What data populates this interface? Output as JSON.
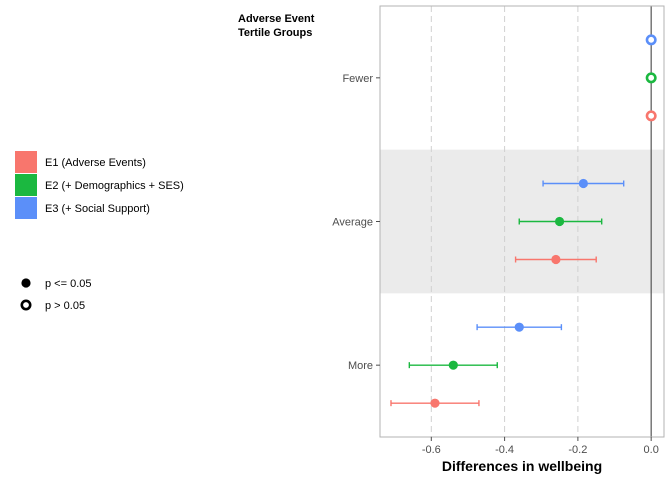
{
  "chart_data": {
    "type": "scatter",
    "subtype": "forest-plot (point estimates with confidence intervals)",
    "title": "",
    "xlabel": "Differences in wellbeing",
    "ylabel": "",
    "xlim": [
      -0.74,
      0.035
    ],
    "xticks": [
      -0.6,
      -0.4,
      -0.2,
      0.0
    ],
    "xtick_labels": [
      "-0.6",
      "-0.4",
      "-0.2",
      "0.0"
    ],
    "categories": [
      "Fewer",
      "Average",
      "More"
    ],
    "reference_line_x": 0.0,
    "shaded_band_category": "Average",
    "grid": "vertical dashed major gridlines",
    "legend_title": "Adverse Event\nTertile Groups",
    "legend_position": "left",
    "series": [
      {
        "name": "E1 (Adverse Events)",
        "color": "#F8766D",
        "points": [
          {
            "category": "Fewer",
            "estimate": 0.0,
            "lower": null,
            "upper": null,
            "significant": false
          },
          {
            "category": "Average",
            "estimate": -0.26,
            "lower": -0.37,
            "upper": -0.15,
            "significant": true
          },
          {
            "category": "More",
            "estimate": -0.59,
            "lower": -0.71,
            "upper": -0.47,
            "significant": true
          }
        ]
      },
      {
        "name": "E2 (+ Demographics + SES)",
        "color": "#1BB840",
        "points": [
          {
            "category": "Fewer",
            "estimate": 0.0,
            "lower": null,
            "upper": null,
            "significant": false
          },
          {
            "category": "Average",
            "estimate": -0.25,
            "lower": -0.36,
            "upper": -0.135,
            "significant": true
          },
          {
            "category": "More",
            "estimate": -0.54,
            "lower": -0.66,
            "upper": -0.42,
            "significant": true
          }
        ]
      },
      {
        "name": "E3 (+ Social Support)",
        "color": "#5B8FF9",
        "points": [
          {
            "category": "Fewer",
            "estimate": 0.0,
            "lower": null,
            "upper": null,
            "significant": false
          },
          {
            "category": "Average",
            "estimate": -0.185,
            "lower": -0.295,
            "upper": -0.075,
            "significant": true
          },
          {
            "category": "More",
            "estimate": -0.36,
            "lower": -0.475,
            "upper": -0.245,
            "significant": true
          }
        ]
      }
    ],
    "significance_legend": [
      {
        "label": "p <= 0.05",
        "marker": "filled"
      },
      {
        "label": "p > 0.05",
        "marker": "hollow"
      }
    ]
  }
}
